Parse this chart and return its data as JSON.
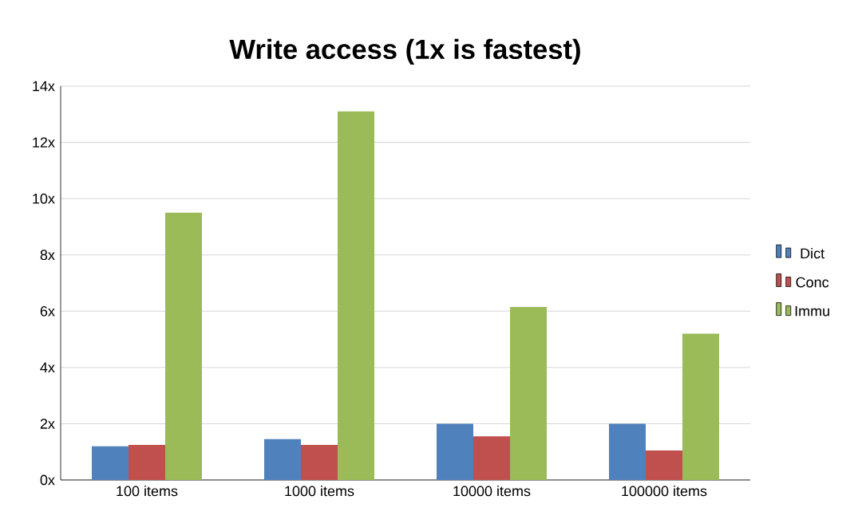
{
  "chart_data": {
    "type": "bar",
    "title": "Write access (1x is fastest)",
    "categories": [
      "100 items",
      "1000 items",
      "10000 items",
      "100000 items"
    ],
    "series": [
      {
        "name": "Dict",
        "color": "#4f81bd",
        "values": [
          1.2,
          1.45,
          2.0,
          2.0
        ]
      },
      {
        "name": "Conc",
        "color": "#c0504d",
        "values": [
          1.25,
          1.25,
          1.55,
          1.05
        ]
      },
      {
        "name": "Immu",
        "color": "#9bbb59",
        "values": [
          9.5,
          13.1,
          6.15,
          5.2
        ]
      }
    ],
    "ylim": [
      0,
      14
    ],
    "yticks": [
      {
        "value": 0,
        "label": "0x"
      },
      {
        "value": 2,
        "label": "2x"
      },
      {
        "value": 4,
        "label": "4x"
      },
      {
        "value": 6,
        "label": "6x"
      },
      {
        "value": 8,
        "label": "8x"
      },
      {
        "value": 10,
        "label": "10x"
      },
      {
        "value": 12,
        "label": "12x"
      },
      {
        "value": 14,
        "label": "14x"
      }
    ],
    "grid": "y",
    "legend": "right"
  }
}
